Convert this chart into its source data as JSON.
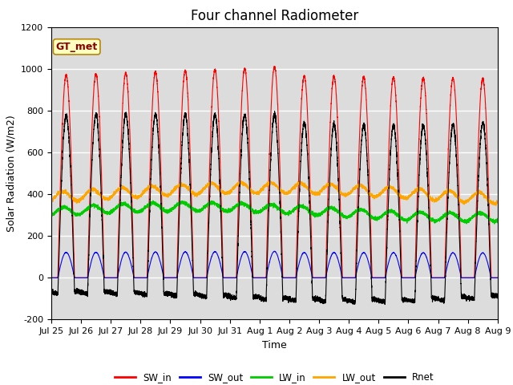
{
  "title": "Four channel Radiometer",
  "xlabel": "Time",
  "ylabel": "Solar Radiation (W/m2)",
  "ylim": [
    -200,
    1200
  ],
  "yticks": [
    -200,
    0,
    200,
    400,
    600,
    800,
    1000,
    1200
  ],
  "annotation_text": "GT_met",
  "annotation_color": "#8B0000",
  "annotation_bg": "#FFFFC0",
  "annotation_border": "#B8860B",
  "colors": {
    "SW_in": "#FF0000",
    "SW_out": "#0000FF",
    "LW_in": "#00CC00",
    "LW_out": "#FFA500",
    "Rnet": "#000000"
  },
  "legend_labels": [
    "SW_in",
    "SW_out",
    "LW_in",
    "LW_out",
    "Rnet"
  ],
  "n_days": 15,
  "plot_bg": "#DCDCDC",
  "grid_color": "#FFFFFF",
  "title_fontsize": 12,
  "label_fontsize": 9,
  "tick_fontsize": 8
}
